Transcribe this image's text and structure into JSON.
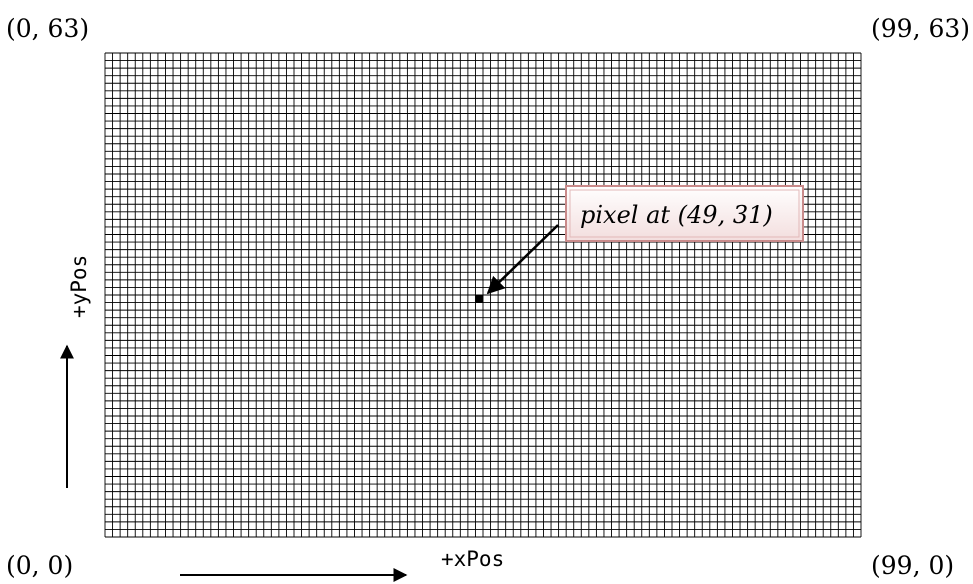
{
  "grid": {
    "columns": 100,
    "rows": 64,
    "line_color": "#000000"
  },
  "corners": {
    "top_left": "(0, 63)",
    "top_right": "(99, 63)",
    "bottom_left": "(0, 0)",
    "bottom_right": "(99, 0)"
  },
  "axes": {
    "x_label": "+xPos",
    "y_label": "+yPos"
  },
  "highlighted_pixel": {
    "x": 49,
    "y": 31,
    "color": "#000000"
  },
  "callout": {
    "text": "pixel at (49, 31)",
    "border_color": "#c98a8a",
    "fill_top": "#ffffff",
    "fill_bottom": "#f3dede"
  }
}
